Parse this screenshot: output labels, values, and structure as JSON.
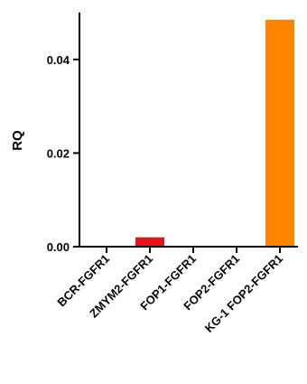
{
  "chart_data": {
    "type": "bar",
    "title": "",
    "xlabel": "",
    "ylabel": "RQ",
    "categories": [
      "BCR-FGFR1",
      "ZMYM2-FGFR1",
      "FOP1-FGFR1",
      "FOP2-FGFR1",
      "KG-1 FOP2-FGFR1"
    ],
    "values": [
      0,
      0.002,
      0,
      0,
      0.0485
    ],
    "ylim": [
      0,
      0.05
    ],
    "yticks": [
      0,
      0.02,
      0.04
    ],
    "ytick_labels": [
      "0.00",
      "0.02",
      "0.04"
    ],
    "bar_colors": [
      "#e8121b",
      "#e8121b",
      "#e8121b",
      "#e8121b",
      "#ff8400"
    ],
    "grid": false,
    "legend": "none"
  }
}
